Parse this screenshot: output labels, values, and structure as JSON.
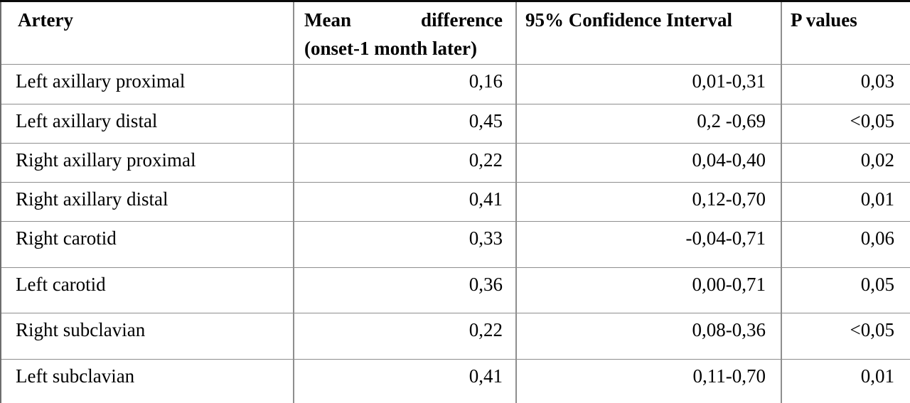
{
  "table": {
    "header": {
      "artery": "Artery",
      "mean_diff_word1": "Mean",
      "mean_diff_word2": "difference",
      "mean_diff_line2": "(onset-1 month later)",
      "confidence_interval": "95% Confidence Interval",
      "p_values": "P values"
    },
    "rows": [
      {
        "artery": "Left axillary proximal",
        "mean_difference": "0,16",
        "confidence_interval": "0,01-0,31",
        "p_value": "0,03"
      },
      {
        "artery": "Left axillary distal",
        "mean_difference": "0,45",
        "confidence_interval": "0,2 -0,69",
        "p_value": "<0,05"
      },
      {
        "artery": "Right axillary proximal",
        "mean_difference": "0,22",
        "confidence_interval": "0,04-0,40",
        "p_value": "0,02"
      },
      {
        "artery": "Right axillary distal",
        "mean_difference": "0,41",
        "confidence_interval": "0,12-0,70",
        "p_value": "0,01"
      },
      {
        "artery": "Right carotid",
        "mean_difference": "0,33",
        "confidence_interval": "-0,04-0,71",
        "p_value": "0,06"
      },
      {
        "artery": "Left carotid",
        "mean_difference": "0,36",
        "confidence_interval": "0,00-0,71",
        "p_value": "0,05"
      },
      {
        "artery": "Right subclavian",
        "mean_difference": "0,22",
        "confidence_interval": "0,08-0,36",
        "p_value": "<0,05"
      },
      {
        "artery": "Left subclavian",
        "mean_difference": "0,41",
        "confidence_interval": "0,11-0,70",
        "p_value": "0,01"
      }
    ],
    "colors": {
      "text": "#000000",
      "grid_line": "#8e8e8e",
      "top_border": "#0a0a0a",
      "background": "#ffffff"
    }
  }
}
